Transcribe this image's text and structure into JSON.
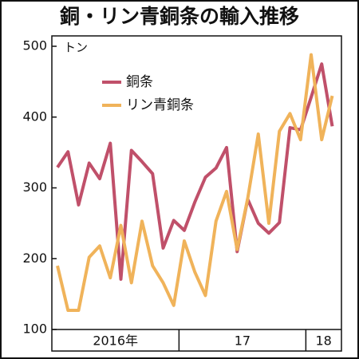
{
  "chart_data": {
    "type": "line",
    "title": "銅・リン青銅条の輸入推移",
    "y_unit": "トン",
    "categories": [
      null,
      null,
      null,
      null,
      null,
      null,
      null,
      null,
      null,
      null,
      null,
      null,
      null,
      null,
      null,
      null,
      null,
      null,
      null,
      null,
      null,
      null,
      null,
      null,
      null,
      null,
      null
    ],
    "x_groups": [
      "2016年",
      "17",
      "18"
    ],
    "series": [
      {
        "name": "銅条",
        "color": "#c0506a",
        "values": [
          329,
          351,
          276,
          335,
          313,
          363,
          171,
          353,
          337,
          320,
          215,
          254,
          240,
          280,
          315,
          328,
          357,
          210,
          284,
          250,
          236,
          251,
          385,
          382,
          428,
          475,
          387
        ]
      },
      {
        "name": "リン青銅条",
        "color": "#f0b35a",
        "values": [
          190,
          127,
          127,
          202,
          218,
          173,
          247,
          166,
          253,
          190,
          166,
          134,
          225,
          181,
          148,
          253,
          295,
          213,
          285,
          376,
          250,
          380,
          405,
          368,
          488,
          368,
          430
        ]
      }
    ],
    "ylim": [
      100,
      500
    ],
    "yticks": [
      100,
      200,
      300,
      400,
      500
    ]
  }
}
